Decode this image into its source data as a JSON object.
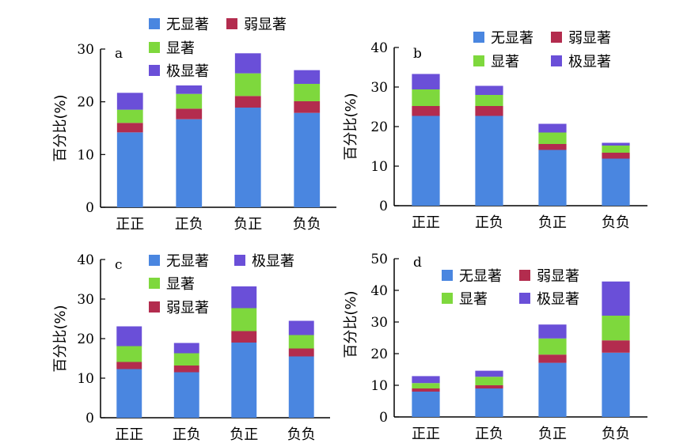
{
  "colors": {
    "无显著": "#4a86e0",
    "弱显著": "#b32c4e",
    "显著": "#7ed83d",
    "极显著": "#6a4fd8"
  },
  "chart_data": [
    {
      "type": "bar",
      "stacked": true,
      "panel": "a",
      "categories": [
        "正正",
        "正负",
        "负正",
        "负负"
      ],
      "ylabel": "百分比(%)",
      "ylim": [
        0,
        30
      ],
      "yticks": [
        0,
        10,
        20,
        30
      ],
      "series": [
        {
          "name": "无显著",
          "values": [
            14.2,
            16.7,
            18.9,
            17.9
          ]
        },
        {
          "name": "弱显著",
          "values": [
            1.8,
            2.0,
            2.2,
            2.2
          ]
        },
        {
          "name": "显著",
          "values": [
            2.5,
            2.8,
            4.3,
            3.3
          ]
        },
        {
          "name": "极显著",
          "values": [
            3.2,
            1.6,
            3.8,
            2.6
          ]
        }
      ],
      "legend": [
        "无显著",
        "弱显著",
        "显著",
        "极显著"
      ]
    },
    {
      "type": "bar",
      "stacked": true,
      "panel": "b",
      "categories": [
        "正正",
        "正负",
        "负正",
        "负负"
      ],
      "ylabel": "百分比(%)",
      "ylim": [
        0,
        40
      ],
      "yticks": [
        0,
        10,
        20,
        30,
        40
      ],
      "series": [
        {
          "name": "无显著",
          "values": [
            22.7,
            22.7,
            14.1,
            11.9
          ]
        },
        {
          "name": "弱显著",
          "values": [
            2.5,
            2.5,
            1.5,
            1.5
          ]
        },
        {
          "name": "显著",
          "values": [
            4.2,
            2.8,
            2.9,
            1.8
          ]
        },
        {
          "name": "极显著",
          "values": [
            3.9,
            2.3,
            2.2,
            0.7
          ]
        }
      ],
      "legend": [
        "无显著",
        "弱显著",
        "显著",
        "极显著"
      ]
    },
    {
      "type": "bar",
      "stacked": true,
      "panel": "c",
      "categories": [
        "正正",
        "正负",
        "负正",
        "负负"
      ],
      "ylabel": "百分比(%)",
      "ylim": [
        0,
        40
      ],
      "yticks": [
        0,
        10,
        20,
        30,
        40
      ],
      "series": [
        {
          "name": "无显著",
          "values": [
            12.3,
            11.5,
            19.0,
            15.5
          ]
        },
        {
          "name": "弱显著",
          "values": [
            1.8,
            1.7,
            2.9,
            2.0
          ]
        },
        {
          "name": "显著",
          "values": [
            4.0,
            3.1,
            5.8,
            3.4
          ]
        },
        {
          "name": "极显著",
          "values": [
            5.0,
            2.6,
            5.5,
            3.6
          ]
        }
      ],
      "legend": [
        "无显著",
        "极显著",
        "显著",
        "弱显著"
      ]
    },
    {
      "type": "bar",
      "stacked": true,
      "panel": "d",
      "categories": [
        "正正",
        "正负",
        "负正",
        "负负"
      ],
      "ylabel": "百分比(%)",
      "ylim": [
        0,
        50
      ],
      "yticks": [
        0,
        10,
        20,
        30,
        40,
        50
      ],
      "series": [
        {
          "name": "无显著",
          "values": [
            8.0,
            9.0,
            17.1,
            20.3
          ]
        },
        {
          "name": "弱显著",
          "values": [
            1.0,
            1.0,
            2.6,
            3.9
          ]
        },
        {
          "name": "显著",
          "values": [
            1.7,
            2.7,
            5.1,
            7.8
          ]
        },
        {
          "name": "极显著",
          "values": [
            2.2,
            1.9,
            4.4,
            10.8
          ]
        }
      ],
      "legend": [
        "无显著",
        "弱显著",
        "显著",
        "极显著"
      ]
    }
  ]
}
